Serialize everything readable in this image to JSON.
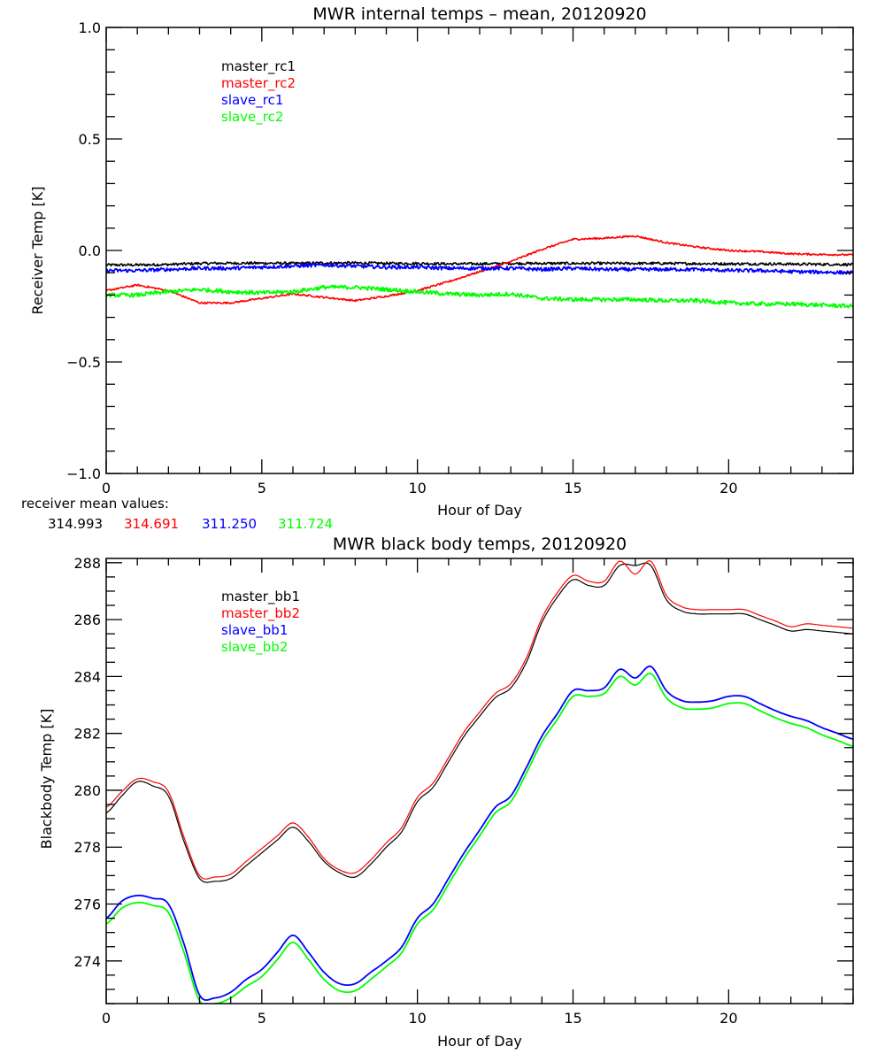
{
  "chart_data": [
    {
      "type": "line",
      "title": "MWR internal temps – mean, 20120920",
      "xlabel": "Hour of Day",
      "ylabel": "Receiver Temp [K]",
      "xlim": [
        0,
        24
      ],
      "ylim": [
        -1.0,
        1.0
      ],
      "xticks": [
        0,
        5,
        10,
        15,
        20
      ],
      "xtick_labels": [
        "0",
        "5",
        "10",
        "15",
        "20"
      ],
      "yticks": [
        -1.0,
        -0.5,
        0.0,
        0.5,
        1.0
      ],
      "ytick_labels": [
        "−1.0",
        "−0.5",
        "0.0",
        "0.5",
        "1.0"
      ],
      "grid": false,
      "legend_position": "top-left",
      "x": [
        0,
        1,
        2,
        3,
        4,
        5,
        6,
        7,
        8,
        9,
        10,
        11,
        12,
        13,
        14,
        15,
        16,
        17,
        18,
        19,
        20,
        21,
        22,
        23,
        24
      ],
      "series": [
        {
          "name": "master_rc1",
          "color": "#000000",
          "noise": 0.006,
          "values": [
            -0.065,
            -0.065,
            -0.063,
            -0.058,
            -0.057,
            -0.057,
            -0.058,
            -0.056,
            -0.056,
            -0.058,
            -0.058,
            -0.06,
            -0.06,
            -0.058,
            -0.058,
            -0.058,
            -0.058,
            -0.058,
            -0.058,
            -0.059,
            -0.06,
            -0.06,
            -0.061,
            -0.062,
            -0.063
          ]
        },
        {
          "name": "master_rc2",
          "color": "#ff0000",
          "noise": 0.004,
          "values": [
            -0.18,
            -0.155,
            -0.18,
            -0.235,
            -0.235,
            -0.215,
            -0.195,
            -0.21,
            -0.225,
            -0.205,
            -0.18,
            -0.14,
            -0.095,
            -0.05,
            0.005,
            0.05,
            0.055,
            0.065,
            0.035,
            0.015,
            0.0,
            -0.005,
            -0.015,
            -0.018,
            -0.02
          ]
        },
        {
          "name": "slave_rc1",
          "color": "#0000ff",
          "noise": 0.008,
          "values": [
            -0.09,
            -0.09,
            -0.085,
            -0.08,
            -0.08,
            -0.075,
            -0.07,
            -0.065,
            -0.07,
            -0.075,
            -0.075,
            -0.08,
            -0.08,
            -0.08,
            -0.085,
            -0.08,
            -0.085,
            -0.085,
            -0.085,
            -0.085,
            -0.09,
            -0.09,
            -0.095,
            -0.097,
            -0.1
          ]
        },
        {
          "name": "slave_rc2",
          "color": "#00ff00",
          "noise": 0.009,
          "values": [
            -0.2,
            -0.2,
            -0.185,
            -0.175,
            -0.185,
            -0.19,
            -0.185,
            -0.165,
            -0.165,
            -0.175,
            -0.185,
            -0.195,
            -0.2,
            -0.195,
            -0.215,
            -0.22,
            -0.22,
            -0.22,
            -0.225,
            -0.225,
            -0.235,
            -0.24,
            -0.24,
            -0.245,
            -0.25
          ]
        }
      ]
    },
    {
      "type": "line",
      "title": "MWR black body temps, 20120920",
      "xlabel": "Hour of Day",
      "ylabel": "Blackbody Temp [K]",
      "xlim": [
        0,
        24
      ],
      "ylim": [
        272.5,
        288.15
      ],
      "xticks": [
        0,
        5,
        10,
        15,
        20
      ],
      "xtick_labels": [
        "0",
        "5",
        "10",
        "15",
        "20"
      ],
      "yticks": [
        274,
        276,
        278,
        280,
        282,
        284,
        286,
        288
      ],
      "ytick_labels": [
        "274",
        "276",
        "278",
        "280",
        "282",
        "284",
        "286",
        "288"
      ],
      "grid": false,
      "legend_position": "top-left",
      "x": [
        0,
        0.5,
        1,
        1.5,
        2,
        2.5,
        3,
        3.5,
        4,
        4.5,
        5,
        5.5,
        6,
        6.5,
        7,
        7.5,
        8,
        8.5,
        9,
        9.5,
        10,
        10.5,
        11,
        11.5,
        12,
        12.5,
        13,
        13.5,
        14,
        14.5,
        15,
        15.5,
        16,
        16.5,
        17,
        17.5,
        18,
        18.5,
        19,
        19.5,
        20,
        20.5,
        21,
        21.5,
        22,
        22.5,
        23,
        23.5,
        24
      ],
      "series": [
        {
          "name": "master_bb1",
          "color": "#000000",
          "values": [
            279.2,
            279.8,
            280.3,
            280.15,
            279.8,
            278.2,
            276.9,
            276.8,
            276.9,
            277.35,
            277.8,
            278.25,
            278.7,
            278.2,
            277.5,
            277.1,
            276.95,
            277.4,
            278.0,
            278.55,
            279.6,
            280.1,
            281.0,
            281.9,
            282.6,
            283.25,
            283.6,
            284.5,
            285.9,
            286.8,
            287.4,
            287.2,
            287.2,
            287.9,
            287.9,
            287.9,
            286.7,
            286.3,
            286.2,
            286.2,
            286.2,
            286.2,
            286.0,
            285.8,
            285.6,
            285.65,
            285.6,
            285.55,
            285.5
          ]
        },
        {
          "name": "master_bb2",
          "color": "#ff0000",
          "values": [
            279.4,
            279.95,
            280.4,
            280.3,
            279.95,
            278.35,
            277.0,
            276.95,
            277.05,
            277.5,
            277.95,
            278.4,
            278.85,
            278.35,
            277.6,
            277.2,
            277.1,
            277.55,
            278.15,
            278.7,
            279.75,
            280.25,
            281.15,
            282.05,
            282.75,
            283.4,
            283.75,
            284.65,
            286.05,
            286.95,
            287.55,
            287.35,
            287.35,
            288.05,
            287.6,
            288.05,
            286.85,
            286.45,
            286.35,
            286.35,
            286.35,
            286.35,
            286.15,
            285.95,
            285.75,
            285.85,
            285.8,
            285.75,
            285.7
          ]
        },
        {
          "name": "slave_bb1",
          "color": "#0000ff",
          "values": [
            275.5,
            276.1,
            276.3,
            276.2,
            276.0,
            274.6,
            272.8,
            272.7,
            272.9,
            273.35,
            273.7,
            274.3,
            274.9,
            274.3,
            273.6,
            273.2,
            273.2,
            273.6,
            274.0,
            274.5,
            275.5,
            276.0,
            276.9,
            277.8,
            278.6,
            279.4,
            279.8,
            280.8,
            281.9,
            282.7,
            283.5,
            283.5,
            283.6,
            284.25,
            283.95,
            284.35,
            283.5,
            283.15,
            283.1,
            283.15,
            283.3,
            283.3,
            283.05,
            282.8,
            282.6,
            282.45,
            282.2,
            282.0,
            281.8
          ]
        },
        {
          "name": "slave_bb2",
          "color": "#00ff00",
          "values": [
            275.3,
            275.85,
            276.05,
            275.95,
            275.7,
            274.3,
            272.6,
            272.5,
            272.7,
            273.1,
            273.45,
            274.05,
            274.65,
            274.05,
            273.35,
            272.95,
            272.95,
            273.35,
            273.8,
            274.3,
            275.3,
            275.8,
            276.7,
            277.6,
            278.4,
            279.2,
            279.6,
            280.6,
            281.7,
            282.5,
            283.3,
            283.3,
            283.4,
            284.0,
            283.7,
            284.1,
            283.25,
            282.9,
            282.85,
            282.9,
            283.05,
            283.05,
            282.8,
            282.55,
            282.35,
            282.2,
            281.95,
            281.75,
            281.55
          ]
        }
      ]
    }
  ],
  "receiver_means": {
    "label": "receiver mean values:",
    "values": [
      {
        "text": "314.993",
        "color": "#000000"
      },
      {
        "text": "314.691",
        "color": "#ff0000"
      },
      {
        "text": "311.250",
        "color": "#0000ff"
      },
      {
        "text": "311.724",
        "color": "#00ff00"
      }
    ]
  }
}
